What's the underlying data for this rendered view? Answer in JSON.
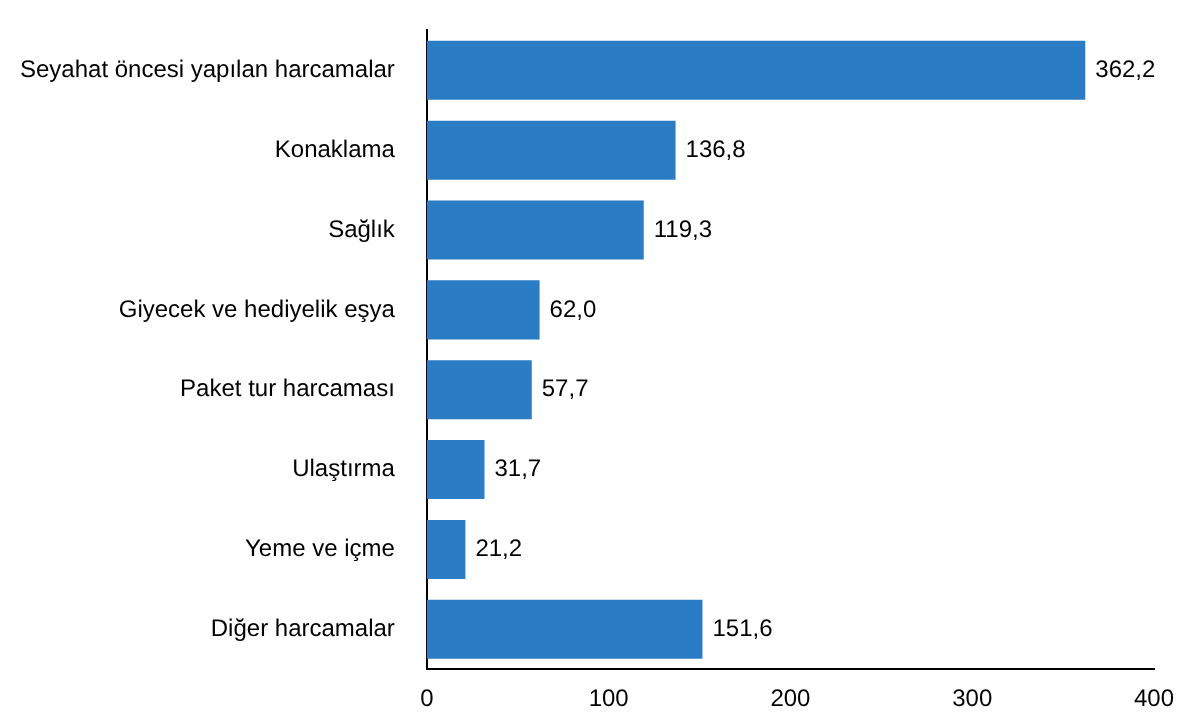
{
  "chart_data": {
    "type": "bar",
    "orientation": "horizontal",
    "categories": [
      "Seyahat öncesi yapılan harcamalar",
      "Konaklama",
      "Sağlık",
      "Giyecek ve hediyelik eşya",
      "Paket tur harcaması",
      "Ulaştırma",
      "Yeme ve içme",
      "Diğer harcamalar"
    ],
    "values": [
      362.2,
      136.8,
      119.3,
      62.0,
      57.7,
      31.7,
      21.2,
      151.6
    ],
    "value_labels": [
      "362,2",
      "136,8",
      "119,3",
      "62,0",
      "57,7",
      "31,7",
      "21,2",
      "151,6"
    ],
    "color": "#2a7dc5",
    "xlim": [
      0,
      400
    ],
    "xticks": [
      0,
      100,
      200,
      300,
      400
    ],
    "grid": false,
    "legend": false
  }
}
